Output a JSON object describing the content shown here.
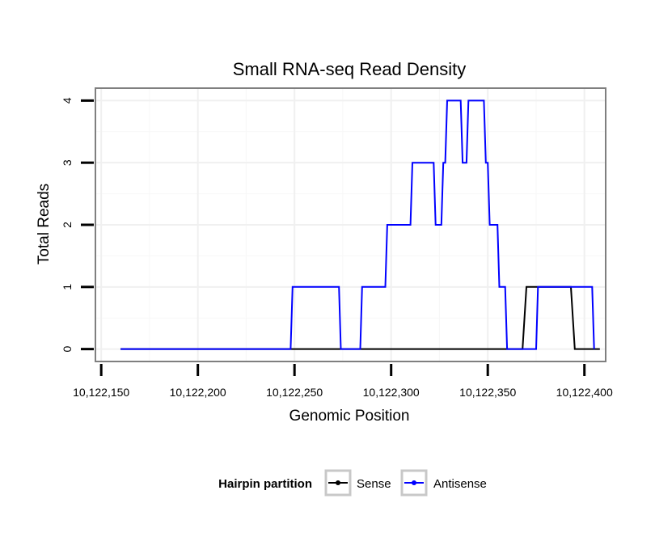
{
  "chart_data": {
    "type": "line",
    "title": "Small RNA-seq Read Density",
    "xlabel": "Genomic Position",
    "ylabel": "Total Reads",
    "xlim": [
      10122147,
      10122411
    ],
    "ylim": [
      -0.2,
      4.2
    ],
    "xticks": [
      10122150,
      10122200,
      10122250,
      10122300,
      10122350,
      10122400
    ],
    "xtick_labels": [
      "10,122,150",
      "10,122,200",
      "10,122,250",
      "10,122,300",
      "10,122,350",
      "10,122,400"
    ],
    "yticks": [
      0,
      1,
      2,
      3,
      4
    ],
    "ytick_labels": [
      "0",
      "1",
      "2",
      "3",
      "4"
    ],
    "grid": true,
    "legend": {
      "title": "Hairpin partition",
      "position": "bottom"
    },
    "series": [
      {
        "name": "Sense",
        "color": "#000000",
        "points": [
          [
            10122160,
            0
          ],
          [
            10122368,
            0
          ],
          [
            10122370,
            1
          ],
          [
            10122393,
            1
          ],
          [
            10122395,
            0
          ],
          [
            10122408,
            0
          ]
        ]
      },
      {
        "name": "Antisense",
        "color": "#0000ff",
        "points": [
          [
            10122160,
            0
          ],
          [
            10122248,
            0
          ],
          [
            10122249,
            1
          ],
          [
            10122273,
            1
          ],
          [
            10122274,
            0
          ],
          [
            10122284,
            0
          ],
          [
            10122285,
            1
          ],
          [
            10122297,
            1
          ],
          [
            10122298,
            2
          ],
          [
            10122310,
            2
          ],
          [
            10122311,
            3
          ],
          [
            10122322,
            3
          ],
          [
            10122323,
            2
          ],
          [
            10122326,
            2
          ],
          [
            10122327,
            3
          ],
          [
            10122328,
            3
          ],
          [
            10122329,
            4
          ],
          [
            10122336,
            4
          ],
          [
            10122337,
            3
          ],
          [
            10122339,
            3
          ],
          [
            10122340,
            4
          ],
          [
            10122348,
            4
          ],
          [
            10122349,
            3
          ],
          [
            10122350,
            3
          ],
          [
            10122351,
            2
          ],
          [
            10122355,
            2
          ],
          [
            10122356,
            1
          ],
          [
            10122359,
            1
          ],
          [
            10122360,
            0
          ],
          [
            10122375,
            0
          ],
          [
            10122376,
            1
          ],
          [
            10122404,
            1
          ],
          [
            10122405,
            0
          ]
        ]
      }
    ]
  }
}
